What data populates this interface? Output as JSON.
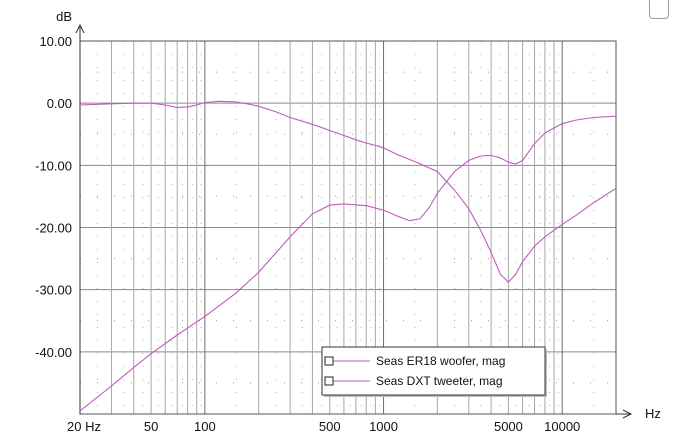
{
  "chart_data": {
    "type": "line",
    "xscale": "log",
    "xlim": [
      20,
      20000
    ],
    "ylim": [
      -50,
      10
    ],
    "ylabel": "dB",
    "xlabel": "Hz",
    "grid": true,
    "legend_placement": "bottom-right",
    "x_tick_labels": [
      {
        "value": 20,
        "label": "20 Hz"
      },
      {
        "value": 50,
        "label": "50"
      },
      {
        "value": 100,
        "label": "100"
      },
      {
        "value": 500,
        "label": "500"
      },
      {
        "value": 1000,
        "label": "1000"
      },
      {
        "value": 5000,
        "label": "5000"
      },
      {
        "value": 10000,
        "label": "10000"
      }
    ],
    "y_tick_labels": [
      {
        "value": 10,
        "label": "10.00"
      },
      {
        "value": 0,
        "label": "0.00"
      },
      {
        "value": -10,
        "label": "-10.00"
      },
      {
        "value": -20,
        "label": "-20.00"
      },
      {
        "value": -30,
        "label": "-30.00"
      },
      {
        "value": -40,
        "label": "-40.00"
      }
    ],
    "series": [
      {
        "name": "Seas ER18 woofer, mag",
        "color": "#c05ac0",
        "points": [
          [
            20,
            -0.3
          ],
          [
            30,
            -0.1
          ],
          [
            40,
            0.0
          ],
          [
            50,
            0.0
          ],
          [
            60,
            -0.3
          ],
          [
            70,
            -0.7
          ],
          [
            80,
            -0.6
          ],
          [
            90,
            -0.3
          ],
          [
            100,
            0.1
          ],
          [
            120,
            0.3
          ],
          [
            150,
            0.2
          ],
          [
            180,
            -0.2
          ],
          [
            200,
            -0.5
          ],
          [
            250,
            -1.4
          ],
          [
            300,
            -2.3
          ],
          [
            400,
            -3.4
          ],
          [
            500,
            -4.4
          ],
          [
            600,
            -5.2
          ],
          [
            700,
            -5.9
          ],
          [
            800,
            -6.4
          ],
          [
            900,
            -6.8
          ],
          [
            1000,
            -7.2
          ],
          [
            1200,
            -8.3
          ],
          [
            1500,
            -9.4
          ],
          [
            2000,
            -11.0
          ],
          [
            2500,
            -14.0
          ],
          [
            3000,
            -17.0
          ],
          [
            3500,
            -20.5
          ],
          [
            4000,
            -24.0
          ],
          [
            4500,
            -27.5
          ],
          [
            5000,
            -28.8
          ],
          [
            5500,
            -27.5
          ],
          [
            6000,
            -25.5
          ],
          [
            7000,
            -23.0
          ],
          [
            8000,
            -21.5
          ],
          [
            10000,
            -19.5
          ],
          [
            12000,
            -18.0
          ],
          [
            15000,
            -16.0
          ],
          [
            20000,
            -13.7
          ]
        ]
      },
      {
        "name": "Seas DXT tweeter, mag",
        "color": "#c05ac0",
        "points": [
          [
            20,
            -49.5
          ],
          [
            30,
            -45.5
          ],
          [
            40,
            -42.5
          ],
          [
            50,
            -40.3
          ],
          [
            70,
            -37.3
          ],
          [
            100,
            -34.3
          ],
          [
            150,
            -30.5
          ],
          [
            200,
            -27.2
          ],
          [
            300,
            -21.5
          ],
          [
            400,
            -17.8
          ],
          [
            500,
            -16.4
          ],
          [
            600,
            -16.2
          ],
          [
            800,
            -16.5
          ],
          [
            1000,
            -17.2
          ],
          [
            1200,
            -18.2
          ],
          [
            1400,
            -18.9
          ],
          [
            1600,
            -18.6
          ],
          [
            1800,
            -16.8
          ],
          [
            2000,
            -14.5
          ],
          [
            2500,
            -11.0
          ],
          [
            3000,
            -9.2
          ],
          [
            3500,
            -8.5
          ],
          [
            4000,
            -8.4
          ],
          [
            4500,
            -8.8
          ],
          [
            5000,
            -9.5
          ],
          [
            5500,
            -9.8
          ],
          [
            6000,
            -9.2
          ],
          [
            6500,
            -7.8
          ],
          [
            7000,
            -6.5
          ],
          [
            8000,
            -4.8
          ],
          [
            9000,
            -4.0
          ],
          [
            10000,
            -3.3
          ],
          [
            12000,
            -2.7
          ],
          [
            15000,
            -2.3
          ],
          [
            20000,
            -2.1
          ]
        ]
      }
    ]
  }
}
